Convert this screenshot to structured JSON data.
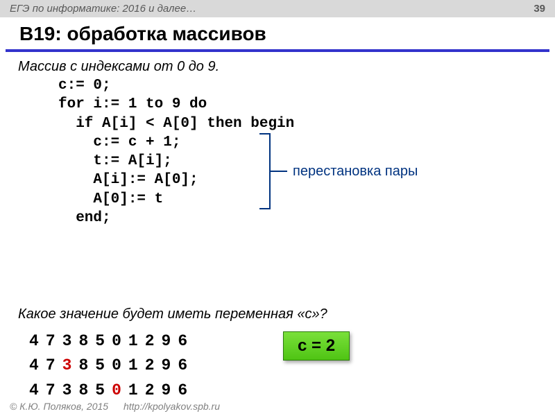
{
  "header": {
    "text": "ЕГЭ по информатике: 2016 и далее…",
    "page_number": "39"
  },
  "title": "B19: обработка массивов",
  "intro": "Массив с индексами от 0 до 9.",
  "code": {
    "line1": "c:= 0;",
    "line2": "for i:= 1 to 9 do",
    "line3": "  if A[i] < A[0] then begin",
    "line4": "    c:= c + 1;",
    "line5": "    t:= A[i];",
    "line6": "    A[i]:= A[0];",
    "line7": "    A[0]:= t",
    "line8": "  end;"
  },
  "annotation": "перестановка пары",
  "question": "Какое значение будет иметь переменная «с»?",
  "arrays": {
    "row1": [
      "4",
      "7",
      "3",
      "8",
      "5",
      "0",
      "1",
      "2",
      "9",
      "6"
    ],
    "row2": [
      "4",
      "7",
      "3",
      "8",
      "5",
      "0",
      "1",
      "2",
      "9",
      "6"
    ],
    "row2_highlight_index": 2,
    "row3": [
      "4",
      "7",
      "3",
      "8",
      "5",
      "0",
      "1",
      "2",
      "9",
      "6"
    ],
    "row3_highlight_index": 5
  },
  "result": "c = 2",
  "footer": {
    "copyright": "© К.Ю. Поляков, 2015",
    "url": "http://kpolyakov.spb.ru"
  },
  "colors": {
    "header_bg": "#d9d9d9",
    "title_underline": "#3333cc",
    "annotation_color": "#003380",
    "highlight_red": "#cc0000",
    "result_bg_top": "#7ae03a",
    "result_bg_bottom": "#4fc414"
  }
}
